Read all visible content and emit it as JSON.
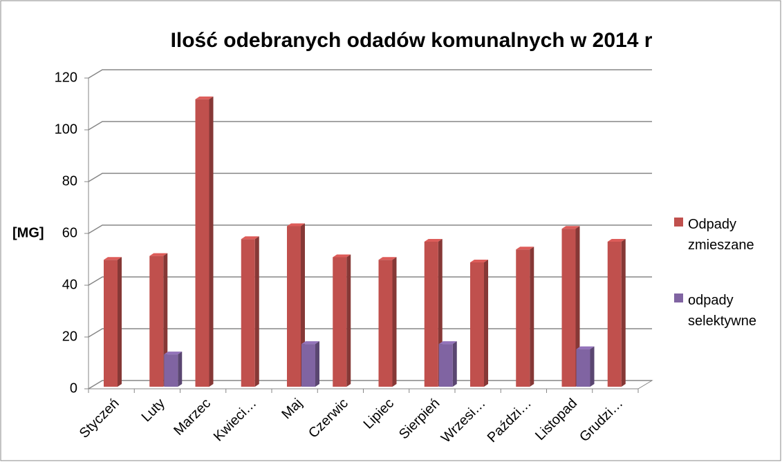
{
  "chart_data": {
    "type": "bar",
    "title": "Ilość odebranych odadów komunalnych w 2014 r",
    "y_label": "[MG]",
    "categories": [
      "Styczeń",
      "Luty",
      "Marzec",
      "Kwieci…",
      "Maj",
      "Czerwic",
      "Lipiec",
      "Sierpień",
      "Wrzesi…",
      "Paździ…",
      "Listopad",
      "Grudzi…"
    ],
    "series": [
      {
        "name": "Odpady zmieszane",
        "color": "#c0504d",
        "values": [
          49,
          50.5,
          111,
          57,
          62,
          50,
          49,
          56,
          48,
          53,
          61,
          56
        ]
      },
      {
        "name": "odpady selektywne",
        "color": "#8064a2",
        "values": [
          null,
          12.5,
          null,
          null,
          16.5,
          null,
          null,
          16.5,
          null,
          null,
          14.5,
          null
        ]
      }
    ],
    "ylim": [
      0,
      120
    ],
    "yticks": [
      0,
      20,
      40,
      60,
      80,
      100,
      120
    ],
    "grid": true,
    "legend": "right"
  }
}
